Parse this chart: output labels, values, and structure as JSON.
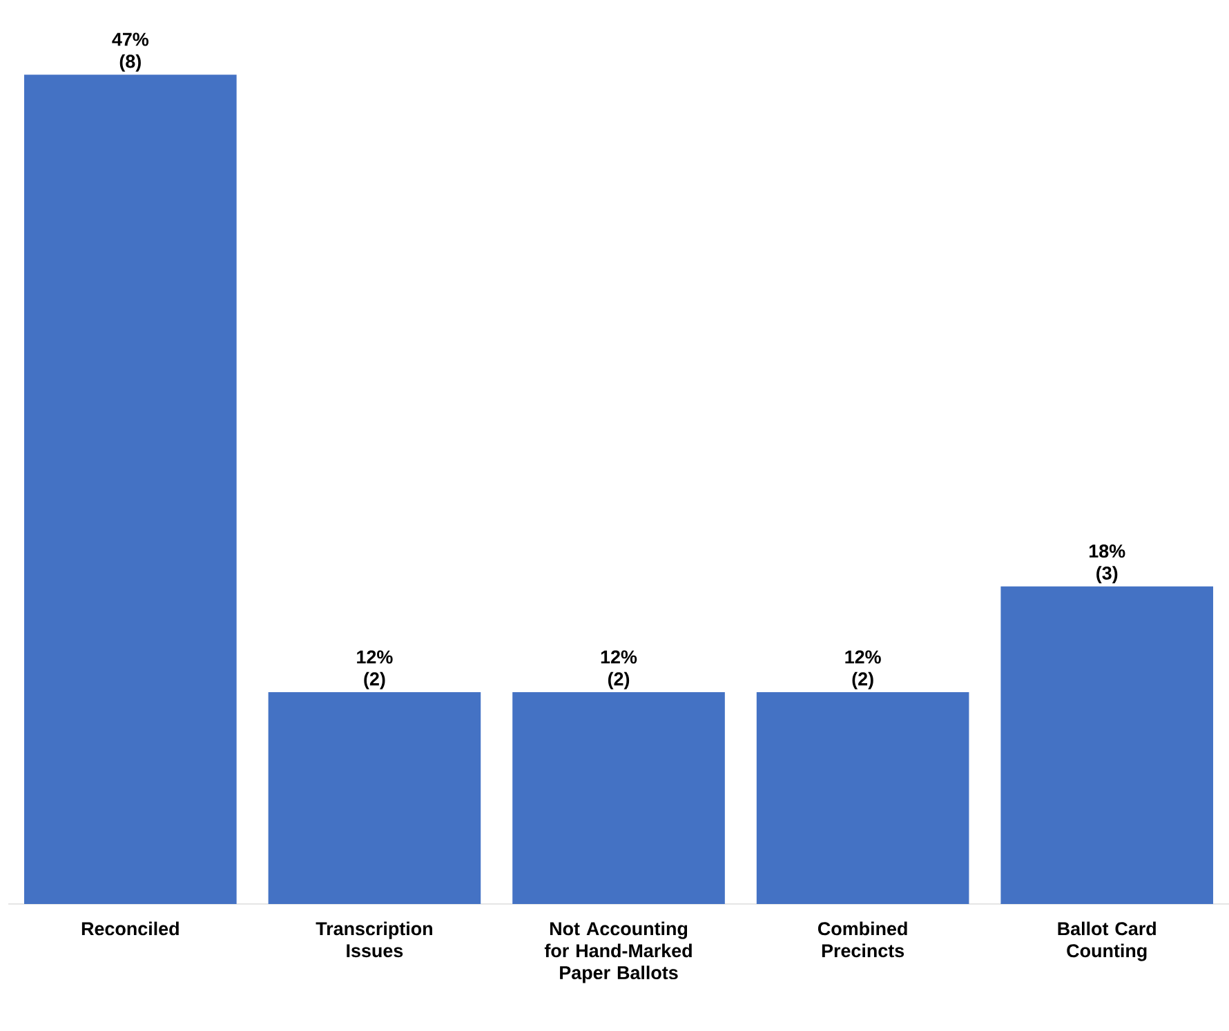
{
  "chart_data": {
    "type": "bar",
    "categories": [
      "Reconciled",
      "Transcription Issues",
      "Not Accounting for Hand-Marked Paper Ballots",
      "Combined Precincts",
      "Ballot Card Counting"
    ],
    "values": [
      47,
      12,
      12,
      12,
      18
    ],
    "value_labels": [
      "47% (8)",
      "12% (2)",
      "12% (2)",
      "12% (2)",
      "18% (3)"
    ],
    "color": "#4472c4"
  }
}
